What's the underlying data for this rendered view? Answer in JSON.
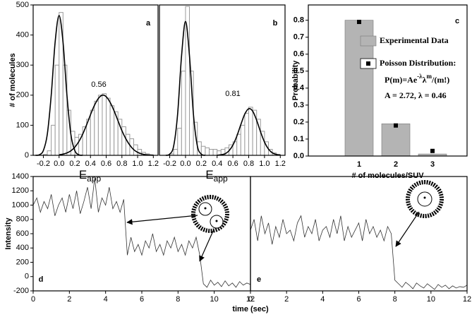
{
  "chart_data": [
    {
      "type": "histogram",
      "panel_label": "a",
      "ylabel": "# of molecules",
      "xlabel": "E",
      "xlabel_subscript": "app",
      "annotation": "0.56",
      "bins": [
        -0.3,
        -0.25,
        -0.2,
        -0.15,
        -0.1,
        -0.05,
        0,
        0.05,
        0.1,
        0.15,
        0.2,
        0.25,
        0.3,
        0.35,
        0.4,
        0.45,
        0.5,
        0.55,
        0.6,
        0.65,
        0.7,
        0.75,
        0.8,
        0.85,
        0.9,
        0.95,
        1,
        1.05,
        1.1,
        1.15,
        1.2
      ],
      "values": [
        0,
        0,
        3,
        15,
        100,
        300,
        475,
        300,
        150,
        80,
        60,
        70,
        95,
        120,
        150,
        180,
        200,
        205,
        190,
        165,
        145,
        120,
        95,
        70,
        55,
        35,
        20,
        10,
        5,
        2
      ],
      "color": "#9a9a9a",
      "fits": [
        {
          "color": "#000000",
          "x": [
            -0.3,
            -0.25,
            -0.2,
            -0.15,
            -0.1,
            -0.05,
            0,
            0.05,
            0.1,
            0.15,
            0.2,
            0.25,
            0.3
          ],
          "values": [
            0,
            2,
            16,
            70,
            200,
            377,
            465,
            377,
            200,
            70,
            16,
            2,
            0
          ]
        },
        {
          "color": "#000000",
          "x": [
            0,
            0.05,
            0.1,
            0.15,
            0.2,
            0.25,
            0.3,
            0.35,
            0.4,
            0.45,
            0.5,
            0.55,
            0.6,
            0.65,
            0.7,
            0.75,
            0.8,
            0.85,
            0.9,
            0.95,
            1,
            1.05,
            1.1,
            1.15,
            1.2
          ],
          "values": [
            2,
            4,
            8,
            15,
            27,
            45,
            70,
            101,
            135,
            166,
            189,
            200,
            195,
            176,
            148,
            115,
            82,
            55,
            34,
            19,
            10,
            5,
            2,
            1,
            0
          ]
        }
      ],
      "xlim": [
        -0.33,
        1.26
      ],
      "ylim": [
        0,
        500
      ],
      "xticks": [
        -0.2,
        {
          "value": 0,
          "label": "0.0"
        },
        0.2,
        0.4,
        0.6,
        0.8,
        {
          "value": 1,
          "label": "1.0"
        },
        1.2
      ],
      "yticks": [
        0,
        100,
        200,
        300,
        400,
        500
      ]
    },
    {
      "type": "histogram",
      "panel_label": "b",
      "xlabel": "E",
      "xlabel_subscript": "app",
      "annotation": "0.81",
      "bins": [
        -0.3,
        -0.25,
        -0.2,
        -0.15,
        -0.1,
        -0.05,
        0,
        0.05,
        0.1,
        0.15,
        0.2,
        0.25,
        0.3,
        0.35,
        0.4,
        0.45,
        0.5,
        0.55,
        0.6,
        0.65,
        0.7,
        0.75,
        0.8,
        0.85,
        0.9,
        0.95,
        1,
        1.05,
        1.1,
        1.15,
        1.2
      ],
      "values": [
        0,
        0,
        5,
        20,
        90,
        280,
        495,
        280,
        110,
        45,
        30,
        25,
        20,
        20,
        15,
        20,
        25,
        35,
        45,
        70,
        100,
        140,
        160,
        150,
        120,
        80,
        45,
        20,
        8,
        3
      ],
      "color": "#9a9a9a",
      "fits": [
        {
          "color": "#000000",
          "x": [
            -0.25,
            -0.2,
            -0.15,
            -0.1,
            -0.05,
            0,
            0.05,
            0.1,
            0.15,
            0.2,
            0.25
          ],
          "values": [
            0,
            4,
            31,
            137,
            331,
            445,
            331,
            137,
            31,
            4,
            0
          ]
        },
        {
          "color": "#000000",
          "x": [
            0.4,
            0.45,
            0.5,
            0.55,
            0.6,
            0.65,
            0.7,
            0.75,
            0.8,
            0.85,
            0.9,
            0.95,
            1,
            1.05,
            1.1,
            1.15,
            1.2
          ],
          "values": [
            0,
            2,
            5,
            15,
            34,
            64,
            102,
            137,
            155,
            147,
            117,
            78,
            44,
            21,
            8,
            3,
            1
          ]
        }
      ],
      "xlim": [
        -0.33,
        1.26
      ],
      "ylim": [
        0,
        500
      ],
      "xticks": [
        -0.2,
        {
          "value": 0,
          "label": "0.0"
        },
        0.2,
        0.4,
        0.6,
        0.8,
        {
          "value": 1,
          "label": "1.0"
        },
        1.2
      ]
    },
    {
      "type": "bar",
      "panel_label": "c",
      "ylabel": "Probability",
      "xlabel": "# of molecules/SUV",
      "categories": [
        "1",
        "2",
        "3"
      ],
      "series": [
        {
          "name": "Experimental Data",
          "color": "#b4b4b4",
          "values": [
            0.8,
            0.19,
            0.012
          ]
        },
        {
          "name": "Poisson Distribution:",
          "color": "#000000",
          "marker": "square",
          "values": [
            0.79,
            0.18,
            0.03
          ]
        }
      ],
      "formula": [
        "P(m)=Ae",
        "-λ",
        "λ",
        "m",
        "/(m!)"
      ],
      "parameters": "A = 2.72, λ = 0.46",
      "ylim": [
        0,
        0.89
      ],
      "yticks": [
        {
          "value": 0,
          "label": "0.0"
        },
        0.1,
        0.2,
        0.3,
        0.4,
        0.5,
        0.6,
        0.7,
        0.8
      ]
    },
    {
      "type": "line",
      "panel_label": "d",
      "ylabel": "Intensity",
      "xlabel": "time (sec)",
      "color": "#333333",
      "x": [
        0,
        0.2,
        0.4,
        0.6,
        0.8,
        1,
        1.2,
        1.4,
        1.6,
        1.8,
        2,
        2.2,
        2.4,
        2.6,
        2.8,
        3,
        3.2,
        3.4,
        3.6,
        3.8,
        4,
        4.2,
        4.4,
        4.6,
        4.8,
        5,
        5.2,
        5.4,
        5.6,
        5.8,
        6,
        6.2,
        6.4,
        6.6,
        6.8,
        7,
        7.2,
        7.4,
        7.6,
        7.8,
        8,
        8.2,
        8.4,
        8.6,
        8.8,
        9,
        9.2,
        9.4,
        9.6,
        9.8,
        10,
        10.2,
        10.4,
        10.6,
        10.8,
        11,
        11.2,
        11.4,
        11.6,
        11.8,
        12
      ],
      "values": [
        1000,
        1100,
        900,
        1050,
        950,
        1150,
        850,
        1000,
        1100,
        900,
        1150,
        950,
        1200,
        880,
        1050,
        1250,
        950,
        1380,
        900,
        1100,
        1000,
        1250,
        950,
        1050,
        900,
        1080,
        300,
        550,
        350,
        450,
        300,
        500,
        400,
        600,
        350,
        450,
        300,
        500,
        400,
        550,
        350,
        450,
        300,
        500,
        400,
        550,
        300,
        -100,
        -150,
        -50,
        -120,
        -80,
        -140,
        -60,
        -130,
        -90,
        -150,
        -70,
        -120,
        -90,
        -110
      ],
      "xlim": [
        0,
        12
      ],
      "ylim": [
        -200,
        1400
      ],
      "xticks": [
        0,
        2,
        4,
        6,
        8,
        10,
        12
      ],
      "yticks": [
        -200,
        0,
        200,
        400,
        600,
        800,
        1000,
        1200,
        1400
      ]
    },
    {
      "type": "line",
      "panel_label": "e",
      "color": "#333333",
      "x": [
        0,
        0.2,
        0.4,
        0.6,
        0.8,
        1,
        1.2,
        1.4,
        1.6,
        1.8,
        2,
        2.2,
        2.4,
        2.6,
        2.8,
        3,
        3.2,
        3.4,
        3.6,
        3.8,
        4,
        4.2,
        4.4,
        4.6,
        4.8,
        5,
        5.2,
        5.4,
        5.6,
        5.8,
        6,
        6.2,
        6.4,
        6.6,
        6.8,
        7,
        7.2,
        7.4,
        7.6,
        7.8,
        8,
        8.2,
        8.4,
        8.6,
        8.8,
        9,
        9.2,
        9.4,
        9.6,
        9.8,
        10,
        10.2,
        10.4,
        10.6,
        10.8,
        11,
        11.2,
        11.4,
        11.6,
        11.8,
        12
      ],
      "values": [
        650,
        800,
        500,
        850,
        600,
        750,
        450,
        700,
        550,
        800,
        600,
        650,
        500,
        750,
        850,
        550,
        700,
        600,
        800,
        500,
        650,
        700,
        550,
        800,
        600,
        850,
        500,
        700,
        550,
        650,
        750,
        500,
        800,
        600,
        700,
        550,
        650,
        500,
        700,
        600,
        -50,
        -100,
        -150,
        -80,
        -120,
        -170,
        -90,
        -130,
        -160,
        -100,
        -140,
        -180,
        -110,
        -150,
        -120,
        -170,
        -130,
        -160,
        -140,
        -150,
        -120
      ],
      "xlim": [
        0,
        12
      ],
      "ylim": [
        -200,
        1400
      ],
      "xticks": [
        0,
        2,
        4,
        6,
        8,
        10,
        12
      ]
    }
  ]
}
